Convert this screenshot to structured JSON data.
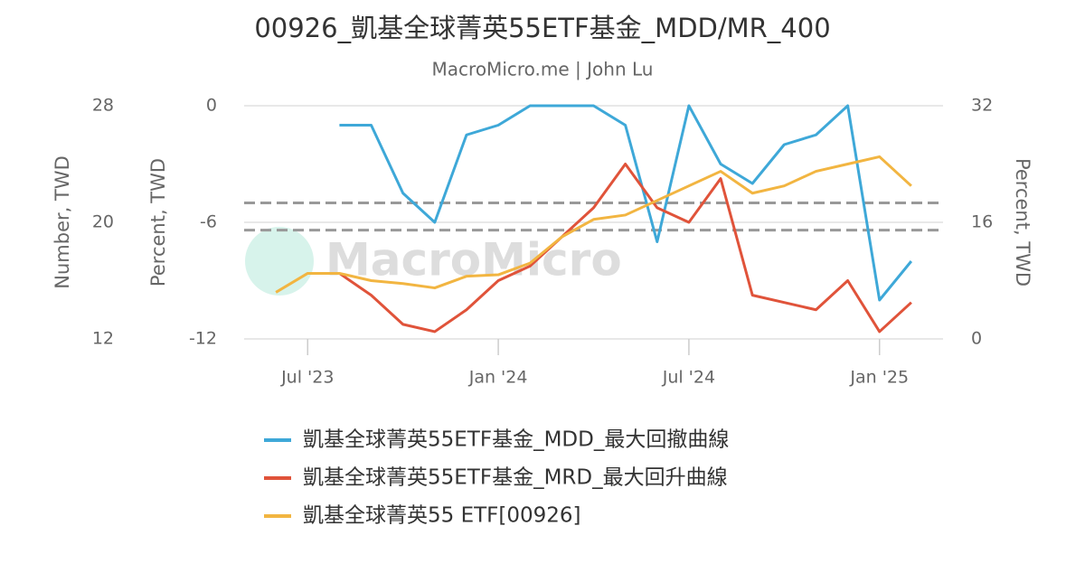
{
  "chart_data": {
    "type": "line",
    "title": "00926_凱基全球菁英55ETF基金_MDD/MR_400",
    "subtitle": "MacroMicro.me | John Lu",
    "watermark": "MacroMicro",
    "y_label": "Number, TWD",
    "y2_label": "Percent, TWD",
    "y3_label": "Percent, TWD",
    "x": [
      "2023-06",
      "2023-07",
      "2023-08",
      "2023-09",
      "2023-10",
      "2023-11",
      "2023-12",
      "2024-01",
      "2024-02",
      "2024-03",
      "2024-04",
      "2024-05",
      "2024-06",
      "2024-07",
      "2024-08",
      "2024-09",
      "2024-10",
      "2024-11",
      "2024-12",
      "2025-01",
      "2025-02"
    ],
    "xlim": [
      "2023-05",
      "2025-03"
    ],
    "xticks": [
      {
        "value": "2023-07",
        "label": "Jul '23"
      },
      {
        "value": "2024-01",
        "label": "Jan '24"
      },
      {
        "value": "2024-07",
        "label": "Jul '24"
      },
      {
        "value": "2025-01",
        "label": "Jan '25"
      }
    ],
    "ylim": [
      12,
      28
    ],
    "yticks": [
      12,
      20,
      28
    ],
    "y2lim": [
      -12,
      0
    ],
    "y2ticks": [
      -12,
      -6,
      0
    ],
    "y3lim": [
      0,
      32
    ],
    "y3ticks": [
      0,
      16,
      32
    ],
    "grid": true,
    "reference_lines": [
      {
        "axis": "y2",
        "value": -5,
        "color": "#999999"
      },
      {
        "axis": "y2",
        "value": -6.4,
        "color": "#999999"
      }
    ],
    "series": [
      {
        "name": "凱基全球菁英55ETF基金_MDD_最大回撤曲線",
        "color": "#3ea8d8",
        "axis": "y2",
        "values": [
          null,
          null,
          -1,
          -1,
          -4.5,
          -6,
          -1.5,
          -1,
          0,
          0,
          0,
          -1,
          -7,
          0,
          -3,
          -4,
          -2,
          -1.5,
          0,
          -10,
          -8
        ]
      },
      {
        "name": "凱基全球菁英55ETF基金_MRD_最大回升曲線",
        "color": "#e0533a",
        "axis": "y3",
        "values": [
          null,
          null,
          9,
          6,
          2,
          1,
          4,
          8,
          10,
          14,
          18,
          24,
          18,
          16,
          22,
          6,
          5,
          4,
          8,
          1,
          5
        ]
      },
      {
        "name": "凱基全球菁英55 ETF[00926]",
        "color": "#f2b541",
        "axis": "y",
        "values": [
          15.2,
          16.5,
          16.5,
          16,
          15.8,
          15.5,
          16.3,
          16.4,
          17.2,
          19,
          20.2,
          20.5,
          21.5,
          22.5,
          23.5,
          22,
          22.5,
          23.5,
          24,
          24.5,
          22.5
        ]
      }
    ]
  }
}
